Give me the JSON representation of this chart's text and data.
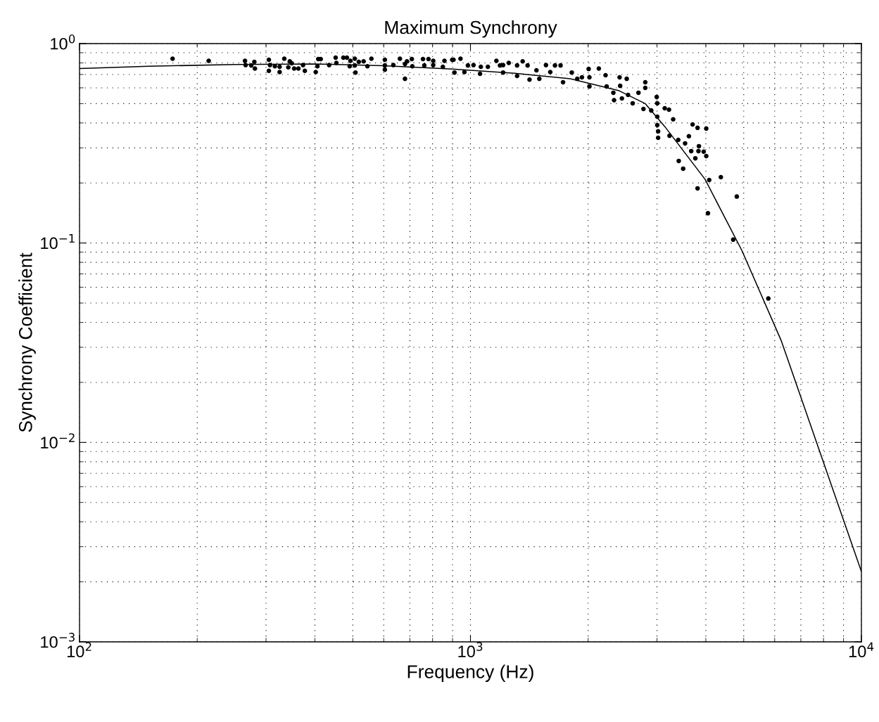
{
  "chart_data": {
    "type": "scatter",
    "title": "Maximum Synchrony",
    "xlabel": "Frequency (Hz)",
    "ylabel": "Synchrony Coefficient",
    "log": "xy",
    "grid": true,
    "xlim": [
      100,
      10000
    ],
    "xticks": [
      {
        "value": 100,
        "label": "10$^{2}$"
      },
      {
        "value": 1000,
        "label": "10$^{3}$"
      },
      {
        "value": 10000,
        "label": "10$^{4}$"
      }
    ],
    "ylim": [
      0.001,
      1
    ],
    "yticks": [
      {
        "value": 0.001,
        "label": "10$^{−3}$"
      },
      {
        "value": 0.01,
        "label": "10$^{−2}$"
      },
      {
        "value": 0.1,
        "label": "10$^{−1}$"
      },
      {
        "value": 1,
        "label": "10$^{0}$"
      }
    ],
    "series": [
      {
        "color": "#000000",
        "marker": "circle",
        "x": [
          173,
          214,
          265,
          266,
          275,
          280,
          281,
          305,
          307,
          305,
          316,
          325,
          325,
          334,
          345,
          342,
          349,
          354,
          363,
          373,
          377,
          402,
          406,
          408,
          414,
          435,
          452,
          454,
          473,
          483,
          491,
          493,
          506,
          506,
          508,
          518,
          533,
          545,
          558,
          604,
          604,
          604,
          635,
          660,
          680,
          680,
          688,
          708,
          710,
          756,
          762,
          781,
          803,
          803,
          850,
          858,
          898,
          910,
          905,
          943,
          965,
          985,
          1018,
          1058,
          1063,
          1108,
          1165,
          1190,
          1212,
          1212,
          1253,
          1316,
          1316,
          1360,
          1400,
          1416,
          1475,
          1500,
          1560,
          1600,
          1645,
          1700,
          1725,
          1816,
          1876,
          1928,
          2006,
          2015,
          2015,
          2130,
          2216,
          2230,
          2320,
          2330,
          2407,
          2415,
          2440,
          2510,
          2530,
          2600,
          2690,
          2770,
          2800,
          2800,
          2900,
          2995,
          3005,
          3005,
          3140,
          3220,
          3300,
          3005,
          3020,
          3020,
          3230,
          3400,
          3540,
          3620,
          3700,
          3810,
          4010,
          3840,
          3670,
          3830,
          3950,
          4010,
          3760,
          3410,
          3500,
          4080,
          4370,
          3810,
          4800,
          4050,
          4700,
          5780
        ],
        "values": [
          0.84,
          0.82,
          0.82,
          0.78,
          0.777,
          0.81,
          0.75,
          0.83,
          0.78,
          0.73,
          0.77,
          0.765,
          0.72,
          0.84,
          0.815,
          0.76,
          0.797,
          0.75,
          0.75,
          0.78,
          0.73,
          0.72,
          0.77,
          0.836,
          0.836,
          0.78,
          0.85,
          0.8,
          0.85,
          0.85,
          0.77,
          0.82,
          0.84,
          0.777,
          0.716,
          0.81,
          0.815,
          0.77,
          0.84,
          0.83,
          0.777,
          0.74,
          0.78,
          0.84,
          0.79,
          0.666,
          0.815,
          0.836,
          0.77,
          0.836,
          0.777,
          0.836,
          0.82,
          0.78,
          0.765,
          0.82,
          0.83,
          0.716,
          0.83,
          0.84,
          0.72,
          0.777,
          0.78,
          0.705,
          0.765,
          0.765,
          0.82,
          0.777,
          0.78,
          0.716,
          0.8,
          0.777,
          0.688,
          0.815,
          0.777,
          0.66,
          0.735,
          0.666,
          0.78,
          0.72,
          0.777,
          0.777,
          0.64,
          0.716,
          0.666,
          0.677,
          0.746,
          0.677,
          0.61,
          0.75,
          0.694,
          0.61,
          0.567,
          0.52,
          0.677,
          0.614,
          0.531,
          0.666,
          0.553,
          0.502,
          0.567,
          0.47,
          0.64,
          0.6,
          0.462,
          0.54,
          0.502,
          0.43,
          0.474,
          0.466,
          0.417,
          0.39,
          0.363,
          0.337,
          0.345,
          0.329,
          0.316,
          0.343,
          0.393,
          0.378,
          0.375,
          0.306,
          0.289,
          0.289,
          0.287,
          0.273,
          0.266,
          0.258,
          0.236,
          0.207,
          0.214,
          0.188,
          0.171,
          0.141,
          0.104,
          0.0527
        ]
      },
      {
        "type": "line",
        "color": "#000000",
        "marker": "none",
        "line_style": "solid",
        "x": [
          100,
          150,
          250,
          400,
          600,
          900,
          1300,
          1800,
          2400,
          2800,
          3140,
          3980,
          4950,
          6240,
          10000
        ],
        "values": [
          0.75,
          0.77,
          0.785,
          0.79,
          0.775,
          0.745,
          0.71,
          0.666,
          0.58,
          0.5,
          0.384,
          0.209,
          0.0914,
          0.0323,
          0.00225
        ]
      }
    ]
  }
}
